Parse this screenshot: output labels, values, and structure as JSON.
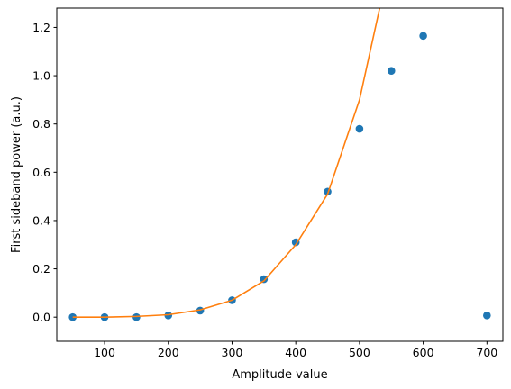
{
  "chart_data": {
    "type": "scatter",
    "title": "",
    "xlabel": "Amplitude value",
    "ylabel": "First sideband power (a.u.)",
    "xlim": [
      25,
      725
    ],
    "ylim": [
      -0.1,
      1.28
    ],
    "xticks": [
      100,
      200,
      300,
      400,
      500,
      600,
      700
    ],
    "yticks": [
      0.0,
      0.2,
      0.4,
      0.6,
      0.8,
      1.0,
      1.2
    ],
    "grid": false,
    "series": [
      {
        "kind": "scatter",
        "color": "#1f77b4",
        "x": [
          50,
          100,
          150,
          200,
          250,
          300,
          350,
          400,
          450,
          500,
          550,
          600,
          700
        ],
        "y": [
          0.0,
          0.0,
          0.0,
          0.007,
          0.027,
          0.07,
          0.157,
          0.31,
          0.52,
          0.78,
          1.02,
          1.165,
          0.007
        ]
      },
      {
        "kind": "line",
        "color": "#ff7f0e",
        "x": [
          50,
          100,
          150,
          200,
          250,
          300,
          350,
          400,
          450,
          500,
          550
        ],
        "y": [
          0.0,
          0.0,
          0.003,
          0.01,
          0.03,
          0.07,
          0.15,
          0.3,
          0.51,
          0.9,
          1.5
        ]
      }
    ]
  }
}
